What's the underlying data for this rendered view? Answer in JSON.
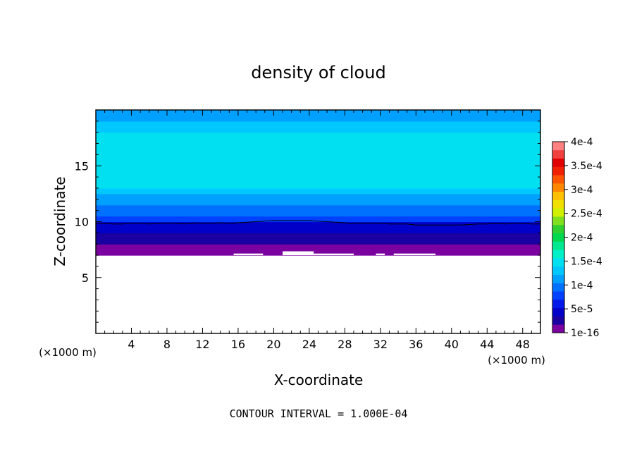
{
  "chart_data": {
    "type": "heatmap",
    "title": "density of cloud",
    "xlabel": "X-coordinate",
    "ylabel": "Z-coordinate",
    "x_unit": "(×1000 m)",
    "y_unit": "(×1000 m)",
    "xlim": [
      0,
      50
    ],
    "ylim": [
      0,
      20
    ],
    "x_ticks": [
      4,
      8,
      12,
      16,
      20,
      24,
      28,
      32,
      36,
      40,
      44,
      48
    ],
    "y_ticks": [
      5,
      10,
      15
    ],
    "footer": "CONTOUR INTERVAL = 1.000E-04",
    "colorbar": {
      "labels": [
        "4e-4",
        "3.5e-4",
        "3e-4",
        "2.5e-4",
        "2e-4",
        "1.5e-4",
        "1e-4",
        "5e-5",
        "1e-16"
      ],
      "label_values": [
        0.0004,
        0.00035,
        0.0003,
        0.00025,
        0.0002,
        0.00015,
        0.0001,
        5e-05,
        0
      ],
      "colors_bottom_to_top": [
        "#7a00a0",
        "#1a00a0",
        "#0000c8",
        "#0018e8",
        "#0040ff",
        "#0070ff",
        "#00a0ff",
        "#00c8ff",
        "#00e0f0",
        "#00f0c8",
        "#00e890",
        "#00d850",
        "#30d030",
        "#80e020",
        "#d0f000",
        "#f0e000",
        "#ffc000",
        "#ff8800",
        "#ff5500",
        "#f02000",
        "#e00000",
        "#f04040",
        "#ff8080"
      ]
    },
    "vertical_profile": {
      "z": [
        7.0,
        7.5,
        8.0,
        8.5,
        9.0,
        9.5,
        10.0,
        10.5,
        11.0,
        11.5,
        12.0,
        12.5,
        13.0,
        14.0,
        15.0,
        16.0,
        17.0,
        18.0,
        19.0,
        20.0
      ],
      "value": [
        5e-06,
        1e-05,
        2e-05,
        3e-05,
        4e-05,
        5e-05,
        7e-05,
        9e-05,
        0.0001,
        0.00011,
        0.00012,
        0.00013,
        0.00014,
        0.00015,
        0.00015,
        0.00015,
        0.00014,
        0.00013,
        0.00012,
        0.00012
      ]
    },
    "cloud_base_segments": [
      {
        "x": [
          0,
          15.5
        ],
        "z": 7.0
      },
      {
        "x": [
          15.5,
          18.8
        ],
        "z": 7.15
      },
      {
        "x": [
          18.8,
          21.0
        ],
        "z": 7.0
      },
      {
        "x": [
          21.0,
          24.5
        ],
        "z": 7.35
      },
      {
        "x": [
          24.5,
          29.0
        ],
        "z": 7.15
      },
      {
        "x": [
          29.0,
          31.5
        ],
        "z": 7.0
      },
      {
        "x": [
          31.5,
          32.5
        ],
        "z": 7.15
      },
      {
        "x": [
          32.5,
          33.5
        ],
        "z": 7.0
      },
      {
        "x": [
          33.5,
          38.2
        ],
        "z": 7.15
      },
      {
        "x": [
          38.2,
          50.0
        ],
        "z": 7.0
      }
    ],
    "contour_line": {
      "value": 0.0001,
      "x": [
        0,
        1,
        2,
        3,
        4,
        5,
        6,
        7,
        8,
        9,
        10,
        11,
        12,
        13,
        14,
        15,
        16,
        17,
        18,
        19,
        20,
        21,
        22,
        23,
        24,
        25,
        26,
        27,
        28,
        29,
        30,
        31,
        32,
        33,
        34,
        35,
        36,
        37,
        38,
        39,
        40,
        41,
        42,
        43,
        44,
        45,
        46,
        47,
        48,
        49,
        50
      ],
      "z": [
        9.85,
        9.85,
        9.8,
        9.8,
        9.85,
        9.85,
        9.8,
        9.85,
        9.85,
        9.85,
        9.8,
        9.9,
        9.85,
        9.85,
        9.9,
        9.85,
        9.9,
        9.95,
        10.0,
        10.05,
        10.1,
        10.1,
        10.1,
        10.1,
        10.1,
        10.05,
        10.0,
        9.95,
        9.9,
        9.85,
        9.85,
        9.85,
        9.85,
        9.8,
        9.8,
        9.8,
        9.7,
        9.7,
        9.7,
        9.7,
        9.7,
        9.7,
        9.75,
        9.8,
        9.8,
        9.85,
        9.8,
        9.85,
        9.85,
        9.8,
        9.8
      ]
    }
  }
}
